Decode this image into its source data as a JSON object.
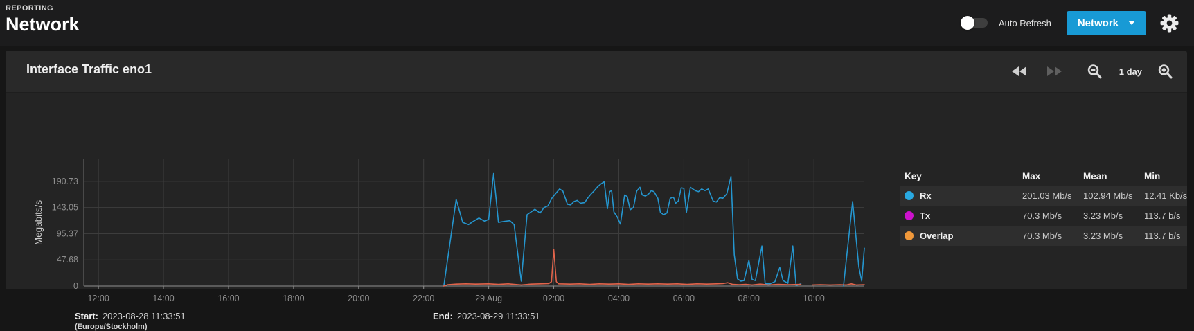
{
  "page": {
    "breadcrumb": "REPORTING",
    "title": "Network",
    "auto_refresh_label": "Auto Refresh",
    "auto_refresh_state": "off",
    "category_button_label": "Network",
    "accent_color": "#189ad5"
  },
  "panel": {
    "title": "Interface Traffic eno1",
    "range_label": "1 day",
    "start_label": "Start:",
    "start_value": "2023-08-28 11:33:51",
    "timezone": "(Europe/Stockholm)",
    "end_label": "End:",
    "end_value": "2023-08-29 11:33:51"
  },
  "legend": {
    "columns": [
      "Key",
      "Max",
      "Mean",
      "Min"
    ],
    "rows": [
      {
        "key": "Rx",
        "color": "#29a9e1",
        "max": "201.03 Mb/s",
        "mean": "102.94 Mb/s",
        "min": "12.41 Kb/s"
      },
      {
        "key": "Tx",
        "color": "#cc11cc",
        "max": "70.3 Mb/s",
        "mean": "3.23 Mb/s",
        "min": "113.7 b/s"
      },
      {
        "key": "Overlap",
        "color": "#f0983a",
        "max": "70.3 Mb/s",
        "mean": "3.23 Mb/s",
        "min": "113.7 b/s"
      }
    ]
  },
  "chart_data": {
    "type": "line",
    "title": "Interface Traffic eno1",
    "ylabel": "Megabits/s",
    "x_domain_hours": [
      11.55,
      35.55
    ],
    "ylim": [
      0,
      231
    ],
    "grid": true,
    "legend_position": "right-table",
    "style": {
      "grid_color": "#3d3d3d",
      "axis_color": "#8f8f8f",
      "tick_color": "#8e8e8e",
      "ylabel_color": "#c9c9c9"
    },
    "y_ticks": [
      {
        "v": 0,
        "label": "0"
      },
      {
        "v": 47.68,
        "label": "47.68"
      },
      {
        "v": 95.37,
        "label": "95.37"
      },
      {
        "v": 143.05,
        "label": "143.05"
      },
      {
        "v": 190.73,
        "label": "190.73"
      }
    ],
    "x_ticks": [
      {
        "t": 12,
        "label": "12:00"
      },
      {
        "t": 14,
        "label": "14:00"
      },
      {
        "t": 16,
        "label": "16:00"
      },
      {
        "t": 18,
        "label": "18:00"
      },
      {
        "t": 20,
        "label": "20:00"
      },
      {
        "t": 22,
        "label": "22:00"
      },
      {
        "t": 24,
        "label": "29 Aug"
      },
      {
        "t": 26,
        "label": "02:00"
      },
      {
        "t": 28,
        "label": "04:00"
      },
      {
        "t": 30,
        "label": "06:00"
      },
      {
        "t": 32,
        "label": "08:00"
      },
      {
        "t": 34,
        "label": "10:00"
      }
    ],
    "series": [
      {
        "name": "Rx",
        "color": "#2596cf",
        "segments": [
          [
            [
              22.62,
              0
            ],
            [
              23.0,
              158
            ],
            [
              23.2,
              116
            ],
            [
              23.38,
              112
            ],
            [
              23.5,
              117
            ],
            [
              23.7,
              124
            ],
            [
              23.88,
              118
            ],
            [
              24.0,
              122
            ],
            [
              24.15,
              205
            ],
            [
              24.3,
              116
            ],
            [
              24.5,
              118
            ],
            [
              24.65,
              119
            ],
            [
              24.78,
              112
            ],
            [
              25.0,
              9
            ],
            [
              25.18,
              130
            ],
            [
              25.3,
              135
            ],
            [
              25.42,
              140
            ],
            [
              25.58,
              133
            ],
            [
              25.7,
              143
            ],
            [
              25.82,
              146
            ],
            [
              25.95,
              161
            ],
            [
              26.18,
              177
            ],
            [
              26.28,
              173
            ],
            [
              26.42,
              149
            ],
            [
              26.52,
              148
            ],
            [
              26.62,
              154
            ],
            [
              26.72,
              156
            ],
            [
              26.82,
              151
            ],
            [
              26.95,
              152
            ],
            [
              27.05,
              161
            ],
            [
              27.15,
              168
            ],
            [
              27.25,
              174
            ],
            [
              27.35,
              181
            ],
            [
              27.45,
              186
            ],
            [
              27.55,
              190
            ],
            [
              27.65,
              141
            ],
            [
              27.72,
              172
            ],
            [
              27.78,
              174
            ],
            [
              27.85,
              135
            ],
            [
              27.95,
              126
            ],
            [
              28.05,
              113
            ],
            [
              28.18,
              166
            ],
            [
              28.26,
              163
            ],
            [
              28.35,
              139
            ],
            [
              28.45,
              143
            ],
            [
              28.55,
              173
            ],
            [
              28.65,
              180
            ],
            [
              28.72,
              166
            ],
            [
              28.82,
              164
            ],
            [
              28.92,
              168
            ],
            [
              29.0,
              174
            ],
            [
              29.08,
              172
            ],
            [
              29.2,
              160
            ],
            [
              29.28,
              134
            ],
            [
              29.38,
              130
            ],
            [
              29.48,
              133
            ],
            [
              29.58,
              160
            ],
            [
              29.68,
              162
            ],
            [
              29.75,
              151
            ],
            [
              29.83,
              155
            ],
            [
              29.92,
              179
            ],
            [
              30.0,
              178
            ],
            [
              30.08,
              134
            ],
            [
              30.2,
              180
            ],
            [
              30.35,
              174
            ],
            [
              30.45,
              172
            ],
            [
              30.55,
              177
            ],
            [
              30.65,
              174
            ],
            [
              30.75,
              177
            ],
            [
              30.9,
              155
            ],
            [
              31.0,
              153
            ],
            [
              31.1,
              161
            ],
            [
              31.2,
              160
            ],
            [
              31.32,
              168
            ],
            [
              31.45,
              200
            ],
            [
              31.55,
              57
            ],
            [
              31.65,
              13
            ],
            [
              31.75,
              9
            ],
            [
              31.85,
              10
            ],
            [
              32.0,
              47
            ],
            [
              32.1,
              12
            ],
            [
              32.2,
              10
            ],
            [
              32.4,
              73
            ],
            [
              32.5,
              4
            ],
            [
              32.65,
              4
            ],
            [
              32.8,
              8
            ],
            [
              32.95,
              34
            ],
            [
              33.05,
              10
            ],
            [
              33.2,
              5
            ],
            [
              33.35,
              73
            ],
            [
              33.45,
              1
            ],
            [
              33.6,
              4
            ]
          ],
          [
            [
              34.91,
              0
            ],
            [
              35.19,
              154
            ],
            [
              35.38,
              35
            ],
            [
              35.47,
              9
            ],
            [
              35.55,
              69
            ]
          ]
        ]
      },
      {
        "name": "Tx/Overlap",
        "color": "#e2644b",
        "segments": [
          [
            [
              22.62,
              0
            ],
            [
              22.75,
              2.5
            ],
            [
              23.0,
              3.5
            ],
            [
              23.3,
              4
            ],
            [
              23.6,
              3.5
            ],
            [
              24.0,
              4
            ],
            [
              24.3,
              3
            ],
            [
              24.6,
              4
            ],
            [
              25.0,
              2
            ],
            [
              25.3,
              3.5
            ],
            [
              25.6,
              4
            ],
            [
              25.85,
              4.5
            ],
            [
              25.93,
              8
            ],
            [
              26.0,
              67
            ],
            [
              26.08,
              8
            ],
            [
              26.15,
              4
            ],
            [
              26.5,
              3.5
            ],
            [
              26.8,
              4
            ],
            [
              27.1,
              3
            ],
            [
              27.4,
              4
            ],
            [
              27.7,
              3.5
            ],
            [
              28.0,
              4
            ],
            [
              28.3,
              3
            ],
            [
              28.6,
              4
            ],
            [
              28.9,
              3.5
            ],
            [
              29.2,
              4
            ],
            [
              29.5,
              3.5
            ],
            [
              29.8,
              4
            ],
            [
              30.1,
              3
            ],
            [
              30.4,
              4
            ],
            [
              30.7,
              3.5
            ],
            [
              31.0,
              4
            ],
            [
              31.2,
              4.5
            ],
            [
              31.35,
              6
            ],
            [
              31.5,
              3
            ],
            [
              31.7,
              2.5
            ],
            [
              31.9,
              3
            ],
            [
              32.1,
              2
            ],
            [
              32.35,
              3.5
            ],
            [
              32.6,
              2
            ],
            [
              32.9,
              3
            ],
            [
              33.2,
              2.5
            ],
            [
              33.6,
              3
            ]
          ],
          [
            [
              33.95,
              2
            ],
            [
              34.2,
              2.5
            ],
            [
              34.5,
              2
            ],
            [
              34.8,
              2.5
            ],
            [
              35.0,
              2
            ],
            [
              35.15,
              4
            ],
            [
              35.3,
              2
            ],
            [
              35.55,
              2.5
            ]
          ]
        ]
      }
    ]
  }
}
